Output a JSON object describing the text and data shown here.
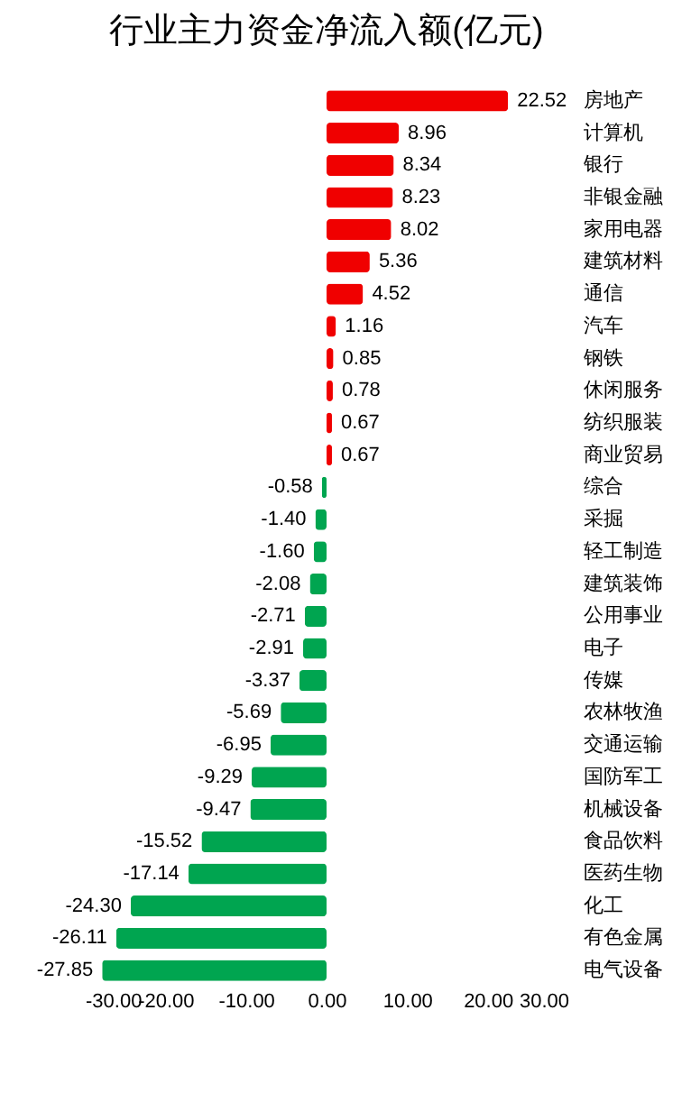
{
  "chart_data": {
    "type": "bar",
    "orientation": "horizontal",
    "title": "行业主力资金净流入额(亿元)",
    "categories": [
      "房地产",
      "计算机",
      "银行",
      "非银金融",
      "家用电器",
      "建筑材料",
      "通信",
      "汽车",
      "钢铁",
      "休闲服务",
      "纺织服装",
      "商业贸易",
      "综合",
      "采掘",
      "轻工制造",
      "建筑装饰",
      "公用事业",
      "电子",
      "传媒",
      "农林牧渔",
      "交通运输",
      "国防军工",
      "机械设备",
      "食品饮料",
      "医药生物",
      "化工",
      "有色金属",
      "电气设备"
    ],
    "values": [
      22.52,
      8.96,
      8.34,
      8.23,
      8.02,
      5.36,
      4.52,
      1.16,
      0.85,
      0.78,
      0.67,
      0.67,
      -0.58,
      -1.4,
      -1.6,
      -2.08,
      -2.71,
      -2.91,
      -3.37,
      -5.69,
      -6.95,
      -9.29,
      -9.47,
      -15.52,
      -17.14,
      -24.3,
      -26.11,
      -27.85
    ],
    "colors": [
      "#f00000",
      "#f00000",
      "#f00000",
      "#f00000",
      "#f00000",
      "#f00000",
      "#f00000",
      "#f00000",
      "#f00000",
      "#f00000",
      "#f00000",
      "#f00000",
      "#00a550",
      "#00a550",
      "#00a550",
      "#00a550",
      "#00a550",
      "#00a550",
      "#00a550",
      "#00a550",
      "#00a550",
      "#00a550",
      "#00a550",
      "#00a550",
      "#00a550",
      "#00a550",
      "#00a550",
      "#00a550"
    ],
    "xlim": [
      -30,
      30
    ],
    "xticks": [
      {
        "value": -30,
        "label": "-30.00"
      },
      {
        "value": -20,
        "label": "-20.00"
      },
      {
        "value": -10,
        "label": "-10.00"
      },
      {
        "value": 0,
        "label": "0.00"
      },
      {
        "value": 10,
        "label": "10.00"
      },
      {
        "value": 20,
        "label": "20.00"
      },
      {
        "value": 30,
        "label": "30.00"
      }
    ],
    "value_labels": [
      "22.52",
      "8.96",
      "8.34",
      "8.23",
      "8.02",
      "5.36",
      "4.52",
      "1.16",
      "0.85",
      "0.78",
      "0.67",
      "0.67",
      "-0.58",
      "-1.40",
      "-1.60",
      "-2.08",
      "-2.71",
      "-2.91",
      "-3.37",
      "-5.69",
      "-6.95",
      "-9.29",
      "-9.47",
      "-15.52",
      "-17.14",
      "-24.30",
      "-26.11",
      "-27.85"
    ],
    "grid": false
  }
}
